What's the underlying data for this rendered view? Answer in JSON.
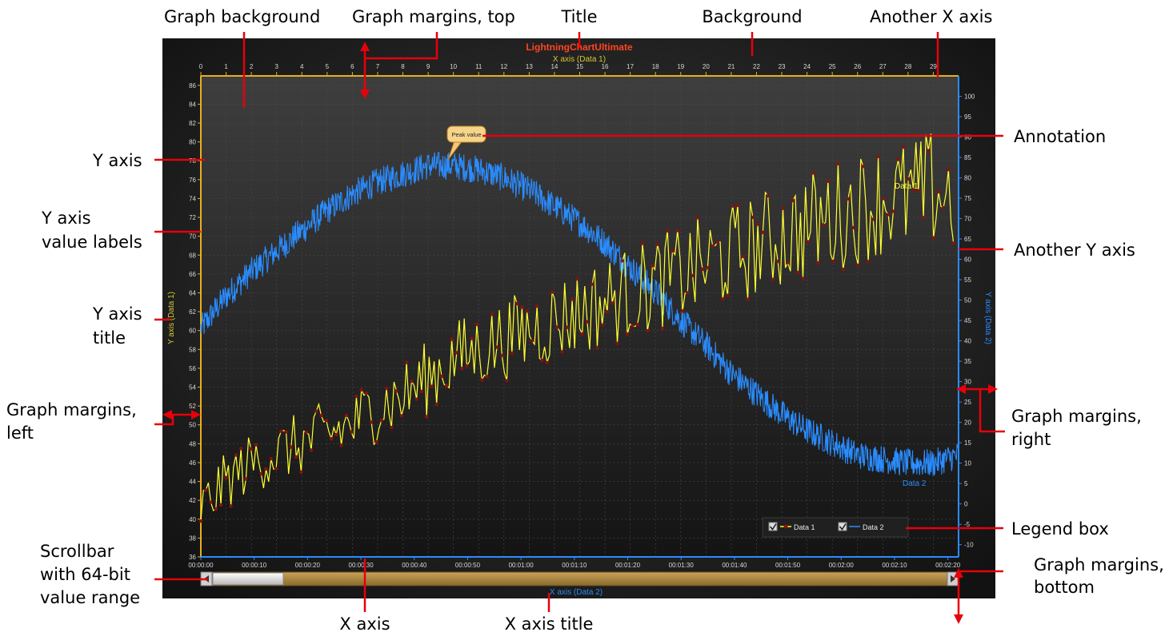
{
  "callouts": {
    "graph_background": "Graph background",
    "graph_margins_top": "Graph margins, top",
    "title": "Title",
    "background": "Background",
    "another_x_axis": "Another X axis",
    "y_axis": "Y axis",
    "annotation": "Annotation",
    "y_axis_value_labels": [
      "Y axis",
      "value labels"
    ],
    "another_y_axis": "Another Y axis",
    "y_axis_title": [
      "Y axis",
      "title"
    ],
    "graph_margins_left": [
      "Graph margins,",
      "left"
    ],
    "graph_margins_right": [
      "Graph margins,",
      "right"
    ],
    "legend_box": "Legend box",
    "scrollbar": [
      "Scrollbar",
      "with 64-bit",
      "value range"
    ],
    "graph_margins_bottom": [
      "Graph margins,",
      "bottom"
    ],
    "x_axis": "X axis",
    "x_axis_title": "X axis title"
  },
  "colors": {
    "data1": "#ffff33",
    "data1_points": "#8b1010",
    "data2": "#2a8cff",
    "title": "#ff4422",
    "callout_line": "#e8000b",
    "frame": "#e8b020"
  },
  "chart_data": {
    "type": "line",
    "title": "LightningChartUltimate",
    "top_x_axis": {
      "title": "X axis (Data 1)",
      "range": [
        0,
        30
      ],
      "ticks": [
        "0",
        "1",
        "2",
        "3",
        "4",
        "5",
        "6",
        "7",
        "8",
        "9",
        "10",
        "11",
        "12",
        "13",
        "14",
        "15",
        "16",
        "17",
        "18",
        "19",
        "20",
        "21",
        "22",
        "23",
        "24",
        "25",
        "26",
        "27",
        "28",
        "29"
      ]
    },
    "bottom_x_axis": {
      "title": "X axis (Data 2)",
      "ticks": [
        "00:00:00",
        "00:00:10",
        "00:00:20",
        "00:00:30",
        "00:00:40",
        "00:00:50",
        "00:01:00",
        "00:01:10",
        "00:01:20",
        "00:01:30",
        "00:01:40",
        "00:01:50",
        "00:02:00",
        "00:02:10",
        "00:02:20"
      ]
    },
    "left_y_axis": {
      "title": "Y axis (Data 1)",
      "range": [
        36,
        87
      ],
      "ticks": [
        "36",
        "38",
        "40",
        "42",
        "44",
        "46",
        "48",
        "50",
        "52",
        "54",
        "56",
        "58",
        "60",
        "62",
        "64",
        "66",
        "68",
        "70",
        "72",
        "74",
        "76",
        "78",
        "80",
        "82",
        "84",
        "86"
      ]
    },
    "right_y_axis": {
      "title": "Y axis (Data 2)",
      "range": [
        -13,
        105
      ],
      "ticks": [
        "-10",
        "-5",
        "0",
        "5",
        "10",
        "15",
        "20",
        "25",
        "30",
        "35",
        "40",
        "45",
        "50",
        "55",
        "60",
        "65",
        "70",
        "75",
        "80",
        "85",
        "90",
        "95",
        "100"
      ]
    },
    "annotation": "Peak value",
    "legend": [
      {
        "label": "Data 1",
        "checked": true
      },
      {
        "label": "Data 2",
        "checked": true
      }
    ],
    "series": [
      {
        "name": "Data 1",
        "axis": "left",
        "x": [
          0,
          1,
          2,
          3,
          4,
          5,
          6,
          7,
          8,
          9,
          10,
          11,
          12,
          13,
          14,
          15,
          16,
          17,
          18,
          19,
          20,
          21,
          22,
          23,
          24,
          25,
          26,
          27,
          28,
          29,
          30
        ],
        "y": [
          41,
          44,
          46,
          47,
          48,
          49,
          50,
          52,
          53,
          55,
          57,
          58,
          59,
          60,
          61,
          62,
          63,
          64,
          65,
          66,
          67,
          68,
          69,
          70,
          71,
          72,
          73,
          74,
          74,
          75,
          74
        ]
      },
      {
        "name": "Data 2",
        "axis": "right",
        "x": [
          0,
          1,
          2,
          3,
          4,
          5,
          6,
          7,
          8,
          9,
          10,
          11,
          12,
          13,
          14,
          15,
          16,
          17,
          18,
          19,
          20,
          21,
          22,
          23,
          24,
          25,
          26,
          27,
          28,
          29,
          30
        ],
        "y": [
          43,
          51,
          57,
          62,
          67,
          72,
          76,
          79,
          81,
          83,
          83,
          82,
          80,
          77,
          73,
          69,
          64,
          58,
          52,
          45,
          39,
          32,
          27,
          22,
          18,
          15,
          12,
          11,
          10,
          10,
          12
        ]
      }
    ]
  }
}
